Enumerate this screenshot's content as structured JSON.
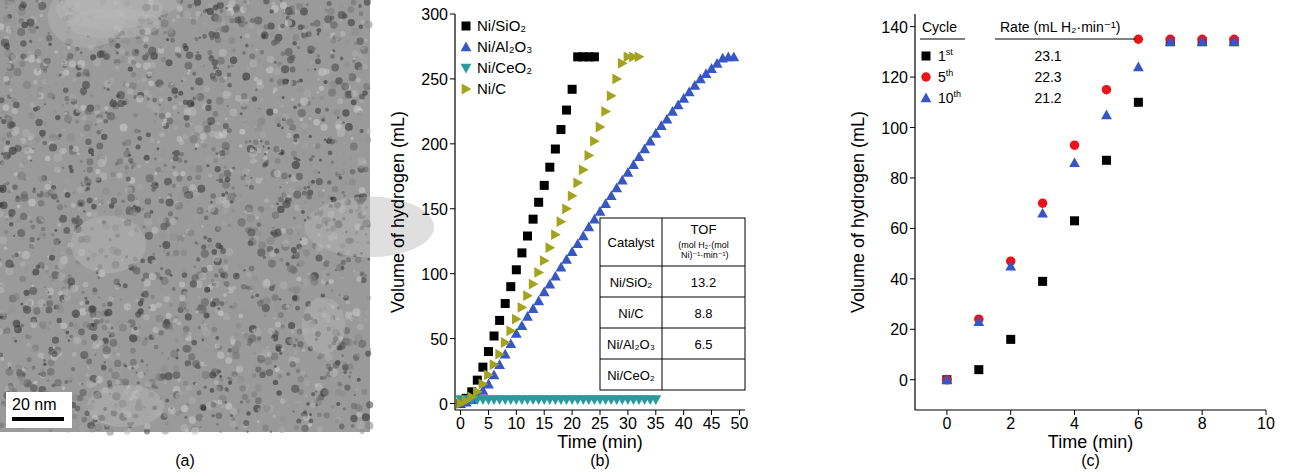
{
  "chart_data": [
    {
      "type": "image",
      "panel_label": "(a)",
      "scale_bar": "20 nm"
    },
    {
      "type": "scatter",
      "panel_label": "(b)",
      "x_label": "Time (min)",
      "y_label": "Volume of hydrogen (mL)",
      "xlim": [
        -1,
        51
      ],
      "xticks": [
        0,
        5,
        10,
        15,
        20,
        25,
        30,
        35,
        40,
        45,
        50
      ],
      "ylim": [
        -5,
        300
      ],
      "yticks": [
        0,
        50,
        100,
        150,
        200,
        250,
        300
      ],
      "legend": "upper left",
      "series": [
        {
          "name": "Ni/SiO₂",
          "color": "#000000",
          "marker": "square",
          "x": [
            0,
            1,
            2,
            3,
            4,
            5,
            6,
            7,
            8,
            9,
            10,
            11,
            12,
            13,
            14,
            15,
            16,
            17,
            18,
            19,
            20,
            21,
            22,
            23,
            24
          ],
          "values": [
            0,
            4,
            9,
            18,
            28,
            40,
            52,
            64,
            77,
            90,
            103,
            116,
            129,
            142,
            155,
            168,
            182,
            196,
            211,
            226,
            242,
            267,
            267,
            267,
            267
          ]
        },
        {
          "name": "Ni/Al₂O₃",
          "color": "#3657c4",
          "marker": "triangle-up",
          "x": [
            0,
            1,
            2,
            3,
            4,
            5,
            6,
            7,
            8,
            9,
            10,
            11,
            12,
            13,
            14,
            15,
            16,
            17,
            18,
            19,
            20,
            21,
            22,
            23,
            24,
            25,
            26,
            27,
            28,
            29,
            30,
            31,
            32,
            33,
            34,
            35,
            36,
            37,
            38,
            39,
            40,
            41,
            42,
            43,
            44,
            45,
            46,
            47,
            48,
            49
          ],
          "values": [
            0,
            1,
            3,
            6,
            10,
            15,
            22,
            30,
            38,
            46,
            54,
            60,
            67,
            73,
            79,
            86,
            92,
            98,
            105,
            111,
            117,
            123,
            129,
            136,
            142,
            148,
            154,
            160,
            166,
            172,
            178,
            184,
            190,
            196,
            202,
            208,
            214,
            219,
            225,
            230,
            235,
            240,
            245,
            250,
            254,
            258,
            262,
            266,
            267,
            267
          ]
        },
        {
          "name": "Ni/CeO₂",
          "color": "#2a9a9e",
          "marker": "triangle-down",
          "x": [
            0,
            1,
            2,
            3,
            4,
            5,
            6,
            7,
            8,
            9,
            10,
            11,
            12,
            13,
            14,
            15,
            16,
            17,
            18,
            19,
            20,
            21,
            22,
            23,
            24,
            25,
            26,
            27,
            28,
            29,
            30,
            31,
            32,
            33,
            34,
            35
          ],
          "values": [
            3,
            3,
            3,
            3,
            3,
            3,
            3,
            3,
            3,
            3,
            3,
            3,
            3,
            3,
            3,
            3,
            3,
            3,
            3,
            3,
            3,
            3,
            3,
            3,
            3,
            3,
            3,
            3,
            3,
            3,
            3,
            3,
            3,
            3,
            3,
            3
          ]
        },
        {
          "name": "Ni/C",
          "color": "#a3a320",
          "marker": "triangle-right",
          "x": [
            0,
            1,
            2,
            3,
            4,
            5,
            6,
            7,
            8,
            9,
            10,
            11,
            12,
            13,
            14,
            15,
            16,
            17,
            18,
            19,
            20,
            21,
            22,
            23,
            24,
            25,
            26,
            27,
            28,
            29,
            30,
            31,
            32
          ],
          "values": [
            0,
            2,
            5,
            9,
            15,
            22,
            30,
            38,
            47,
            56,
            65,
            74,
            83,
            92,
            101,
            110,
            120,
            130,
            140,
            150,
            160,
            170,
            180,
            191,
            202,
            213,
            225,
            237,
            250,
            262,
            267,
            267,
            267
          ]
        }
      ],
      "table": {
        "header": [
          "Catalyst",
          "TOF"
        ],
        "unit": "(mol H₂·(mol Ni)⁻¹·min⁻¹)",
        "rows": [
          [
            "Ni/SiO₂",
            13.2
          ],
          [
            "Ni/C",
            8.8
          ],
          [
            "Ni/Al₂O₃",
            6.5
          ],
          [
            "Ni/CeO₂",
            null
          ]
        ]
      }
    },
    {
      "type": "scatter",
      "panel_label": "(c)",
      "x_label": "Time (min)",
      "y_label": "Volume of hydrogen (mL)",
      "xlim": [
        -1,
        10
      ],
      "xticks": [
        0,
        2,
        4,
        6,
        8,
        10
      ],
      "ylim": [
        -12,
        145
      ],
      "yticks": [
        0,
        20,
        40,
        60,
        80,
        100,
        120,
        140
      ],
      "legend": "upper left",
      "legend_headers": [
        "Cycle",
        "Rate (mL H₂·min⁻¹)"
      ],
      "x": [
        0,
        1,
        2,
        3,
        4,
        5,
        6,
        7,
        8,
        9
      ],
      "series": [
        {
          "name": "1st",
          "color": "#000000",
          "marker": "square",
          "rate": 23.1,
          "values": [
            0,
            4,
            16,
            39,
            63,
            87,
            110,
            134,
            134,
            134
          ]
        },
        {
          "name": "5th",
          "color": "#e8141a",
          "marker": "circle",
          "rate": 22.3,
          "values": [
            0,
            24,
            47,
            70,
            93,
            115,
            135,
            135,
            135,
            135
          ]
        },
        {
          "name": "10th",
          "color": "#3657c4",
          "marker": "triangle-up",
          "rate": 21.2,
          "values": [
            0,
            23,
            45,
            66,
            86,
            105,
            124,
            134,
            134,
            134
          ]
        }
      ]
    }
  ]
}
